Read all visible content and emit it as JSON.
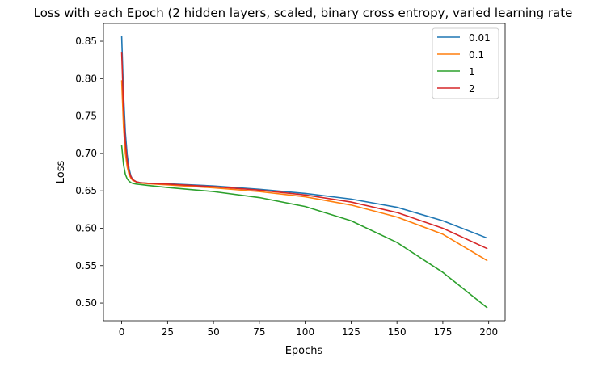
{
  "chart_data": {
    "type": "line",
    "title": "Loss with each Epoch (2 hidden layers, scaled, binary cross entropy, varied learning rate",
    "xlabel": "Epochs",
    "ylabel": "Loss",
    "xlim": [
      -9.95,
      208.95
    ],
    "ylim": [
      0.4763,
      0.8738
    ],
    "xticks": [
      0,
      25,
      50,
      75,
      100,
      125,
      150,
      175,
      200
    ],
    "yticks": [
      0.5,
      0.55,
      0.6,
      0.65,
      0.7,
      0.75,
      0.8,
      0.85
    ],
    "ytick_labels": [
      "0.50",
      "0.55",
      "0.60",
      "0.65",
      "0.70",
      "0.75",
      "0.80",
      "0.85"
    ],
    "grid": false,
    "legend_position": "top-right",
    "series": [
      {
        "name": "0.01",
        "color": "#1f77b4",
        "x": [
          0,
          1,
          2,
          3,
          4,
          5,
          6,
          8,
          10,
          15,
          25,
          50,
          75,
          100,
          125,
          150,
          175,
          199
        ],
        "y": [
          0.856,
          0.78,
          0.728,
          0.698,
          0.68,
          0.67,
          0.665,
          0.662,
          0.661,
          0.66,
          0.6595,
          0.6565,
          0.652,
          0.6465,
          0.639,
          0.628,
          0.61,
          0.587
        ]
      },
      {
        "name": "0.1",
        "color": "#ff7f0e",
        "x": [
          0,
          1,
          2,
          3,
          4,
          5,
          6,
          8,
          10,
          15,
          25,
          50,
          75,
          100,
          125,
          150,
          175,
          199
        ],
        "y": [
          0.797,
          0.735,
          0.7,
          0.682,
          0.672,
          0.667,
          0.664,
          0.662,
          0.6605,
          0.6595,
          0.658,
          0.654,
          0.649,
          0.642,
          0.631,
          0.615,
          0.592,
          0.557
        ]
      },
      {
        "name": "1",
        "color": "#2ca02c",
        "x": [
          0,
          1,
          2,
          3,
          4,
          5,
          6,
          8,
          10,
          15,
          25,
          50,
          75,
          100,
          125,
          150,
          175,
          199
        ],
        "y": [
          0.71,
          0.685,
          0.672,
          0.666,
          0.663,
          0.661,
          0.66,
          0.659,
          0.6585,
          0.657,
          0.6545,
          0.649,
          0.641,
          0.629,
          0.61,
          0.581,
          0.541,
          0.494
        ]
      },
      {
        "name": "2",
        "color": "#d62728",
        "x": [
          0,
          1,
          2,
          3,
          4,
          5,
          6,
          8,
          10,
          15,
          25,
          50,
          75,
          100,
          125,
          150,
          175,
          199
        ],
        "y": [
          0.835,
          0.76,
          0.715,
          0.69,
          0.676,
          0.669,
          0.665,
          0.662,
          0.661,
          0.66,
          0.659,
          0.6555,
          0.651,
          0.6445,
          0.635,
          0.621,
          0.6,
          0.573
        ]
      }
    ]
  }
}
